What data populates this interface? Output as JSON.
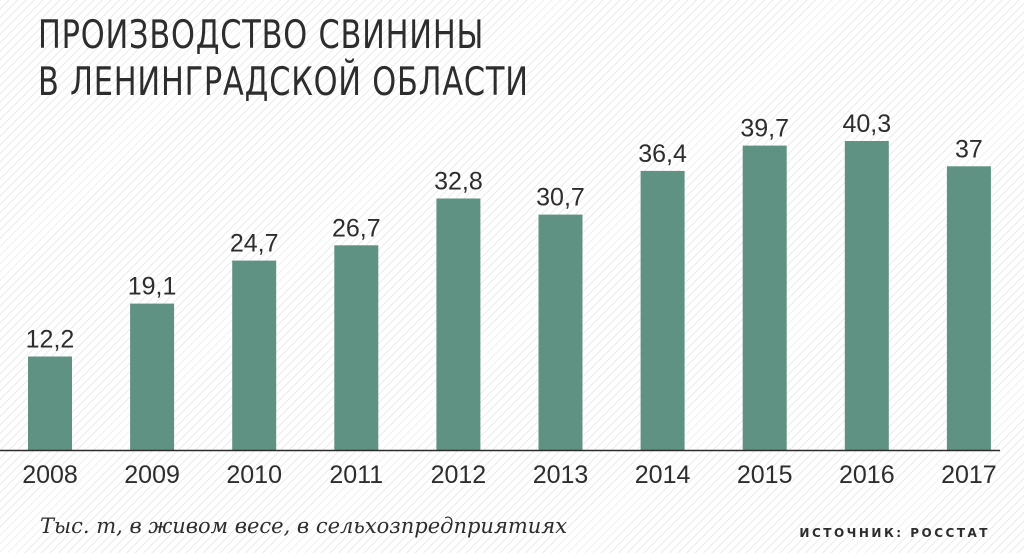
{
  "header": {
    "title_line1": "ПРОИЗВОДСТВО СВИНИНЫ",
    "title_line2": "В ЛЕНИНГРАДСКОЙ ОБЛАСТИ"
  },
  "footer": {
    "units_note": "Тыс.  т, в живом весе, в сельхозпредприятиях",
    "source": "ИСТОЧНИК: РОССТАТ"
  },
  "colors": {
    "bar": "#5f9283",
    "axis": "#2d2d2d",
    "text": "#2d2d2d"
  },
  "chart_data": {
    "type": "bar",
    "title": "ПРОИЗВОДСТВО СВИНИНЫ В ЛЕНИНГРАДСКОЙ ОБЛАСТИ",
    "categories": [
      "2008",
      "2009",
      "2010",
      "2011",
      "2012",
      "2013",
      "2014",
      "2015",
      "2016",
      "2017"
    ],
    "values": [
      12.2,
      19.1,
      24.7,
      26.7,
      32.8,
      30.7,
      36.4,
      39.7,
      40.3,
      37
    ],
    "value_labels": [
      "12,2",
      "19,1",
      "24,7",
      "26,7",
      "32,8",
      "30,7",
      "36,4",
      "39,7",
      "40,3",
      "37"
    ],
    "xlabel": "",
    "ylabel": "",
    "ylim": [
      0,
      40.3
    ],
    "grid": false,
    "legend": "none"
  }
}
